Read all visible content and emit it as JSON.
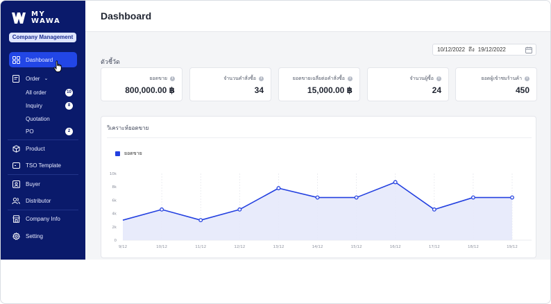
{
  "brand": {
    "logo_text_1": "MY",
    "logo_text_2": "WAWA",
    "badge": "Company Management"
  },
  "sidebar": {
    "items": [
      {
        "label": "Dashboard"
      },
      {
        "label": "Order"
      },
      {
        "label": "Product"
      },
      {
        "label": "TSO Template"
      },
      {
        "label": "Buyer"
      },
      {
        "label": "Distributor"
      },
      {
        "label": "Company Info"
      },
      {
        "label": "Setting"
      }
    ],
    "order_sub": [
      {
        "label": "All order",
        "count": "10"
      },
      {
        "label": "Inquiry",
        "count": "8"
      },
      {
        "label": "Quotation",
        "count": ""
      },
      {
        "label": "PO",
        "count": "2"
      }
    ]
  },
  "header": {
    "title": "Dashboard"
  },
  "filters": {
    "date_from": "10/12/2022",
    "date_sep": "ถึง",
    "date_to": "19/12/2022"
  },
  "section_label": "ตัวชี้วัด",
  "kpis": [
    {
      "label": "ยอดขาย",
      "value": "800,000.00 ฿"
    },
    {
      "label": "จำนวนคำสั่งซื้อ",
      "value": "34"
    },
    {
      "label": "ยอดขายเฉลี่ยต่อคำสั่งซื้อ",
      "value": "15,000.00 ฿"
    },
    {
      "label": "จำนวนผู้ซื้อ",
      "value": "24"
    },
    {
      "label": "ยอดผู้เข้าชมร้านค้า",
      "value": "450"
    }
  ],
  "chart_card": {
    "title": "วิเคราะห์ยอดขาย"
  },
  "colors": {
    "sidebar": "#0a1a6b",
    "accent": "#2246e6",
    "line": "#2340e0",
    "area": "#e6e9fb"
  },
  "chart_data": {
    "type": "area",
    "x": [
      "9/12",
      "10/12",
      "11/12",
      "12/12",
      "13/12",
      "14/12",
      "15/12",
      "16/12",
      "17/12",
      "18/12",
      "19/12"
    ],
    "series": [
      {
        "name": "ยอดขาย",
        "values": [
          3000,
          4600,
          3000,
          4600,
          7800,
          6400,
          6400,
          8700,
          4600,
          6400,
          6400
        ]
      }
    ],
    "yticks": [
      "0",
      "2k",
      "4k",
      "6k",
      "8k",
      "10k"
    ],
    "ylim": [
      0,
      10000
    ],
    "grid": "vertical-dashed",
    "legend": "top-left"
  }
}
